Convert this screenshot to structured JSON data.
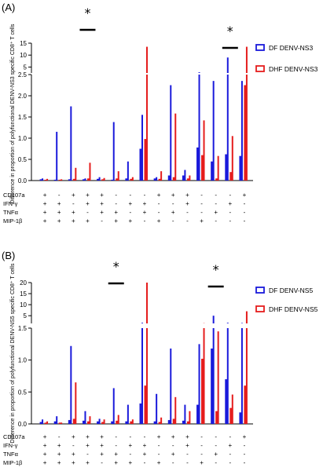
{
  "colors": {
    "df": "#1a1adb",
    "dhf": "#e51d1d",
    "axis": "#000000"
  },
  "chart_data": [
    {
      "type": "bar",
      "panel_label": "(A)",
      "ylabel": "Difference in proportion of polyfunctional DENV-NS3 specific CD8⁺ T cells",
      "ytick_lower": [
        "0.0",
        "0.5",
        "1.0",
        "1.5",
        "2.0",
        "2.5"
      ],
      "ytick_upper": [
        "5",
        "10",
        "15"
      ],
      "ylim_lower": [
        0,
        2.5
      ],
      "ylim_upper": [
        2.5,
        15
      ],
      "legend": [
        {
          "name": "DF DENV-NS3",
          "color": "#1a1adb"
        },
        {
          "name": "DHF DENV-NS3",
          "color": "#e51d1d"
        }
      ],
      "marker_labels": [
        "CD107a",
        "IFN-γ",
        "TNFα",
        "MIP-1β"
      ],
      "categories": [
        [
          "+",
          "+",
          "+",
          "+"
        ],
        [
          "-",
          "+",
          "+",
          "+"
        ],
        [
          "+",
          "-",
          "+",
          "+"
        ],
        [
          "+",
          "+",
          "-",
          "+"
        ],
        [
          "+",
          "+",
          "+",
          "-"
        ],
        [
          "-",
          "-",
          "+",
          "+"
        ],
        [
          "-",
          "+",
          "-",
          "+"
        ],
        [
          "-",
          "+",
          "+",
          "-"
        ],
        [
          "+",
          "-",
          "-",
          "+"
        ],
        [
          "+",
          "-",
          "+",
          "-"
        ],
        [
          "+",
          "+",
          "-",
          "-"
        ],
        [
          "-",
          "-",
          "-",
          "+"
        ],
        [
          "-",
          "-",
          "+",
          "-"
        ],
        [
          "-",
          "+",
          "-",
          "-"
        ],
        [
          "+",
          "-",
          "-",
          "-"
        ]
      ],
      "series": [
        {
          "name": "DF DENV-NS3",
          "values": [
            0.05,
            1.15,
            1.75,
            0.05,
            0.08,
            1.38,
            0.45,
            1.55,
            0.08,
            2.25,
            0.25,
            2.8,
            2.35,
            9.0,
            2.35
          ],
          "means": [
            0.03,
            0.02,
            0.03,
            0.03,
            0.04,
            0.02,
            0.05,
            0.75,
            0.05,
            0.12,
            0.12,
            0.78,
            0.45,
            0.62,
            0.58
          ]
        },
        {
          "name": "DHF DENV-NS3",
          "values": [
            0.04,
            0.03,
            0.3,
            0.42,
            0.06,
            0.22,
            0.08,
            13.5,
            0.22,
            1.58,
            0.12,
            1.42,
            0.58,
            1.05,
            13.5
          ],
          "means": [
            0.02,
            0.02,
            0.04,
            0.05,
            0.03,
            0.05,
            0.04,
            0.98,
            0.04,
            0.08,
            0.05,
            0.6,
            0.05,
            0.2,
            2.25
          ]
        }
      ],
      "significance": [
        {
          "symbol": "*",
          "category_index": 3
        },
        {
          "symbol": "*",
          "category_index": 13
        }
      ]
    },
    {
      "type": "bar",
      "panel_label": "(B)",
      "ylabel": "Difference in proportion of polyfunctional DENV-NS5 specific CD8⁺ T cells",
      "ytick_lower": [
        "0.0",
        "0.5",
        "1.0",
        "1.5"
      ],
      "ytick_upper": [
        "5",
        "10",
        "15",
        "20"
      ],
      "ylim_lower": [
        0,
        1.5
      ],
      "ylim_upper": [
        1.5,
        20
      ],
      "legend": [
        {
          "name": "DF DENV-NS5",
          "color": "#1a1adb"
        },
        {
          "name": "DHF DENV-NS5",
          "color": "#e51d1d"
        }
      ],
      "marker_labels": [
        "CD107a",
        "IFN-γ",
        "TNFα",
        "MIP-1β"
      ],
      "categories": [
        [
          "+",
          "+",
          "+",
          "+"
        ],
        [
          "-",
          "+",
          "+",
          "+"
        ],
        [
          "+",
          "-",
          "+",
          "+"
        ],
        [
          "+",
          "+",
          "-",
          "+"
        ],
        [
          "+",
          "+",
          "+",
          "-"
        ],
        [
          "-",
          "-",
          "+",
          "+"
        ],
        [
          "-",
          "+",
          "-",
          "+"
        ],
        [
          "-",
          "+",
          "+",
          "-"
        ],
        [
          "+",
          "-",
          "-",
          "+"
        ],
        [
          "+",
          "-",
          "+",
          "-"
        ],
        [
          "+",
          "+",
          "-",
          "-"
        ],
        [
          "-",
          "-",
          "-",
          "+"
        ],
        [
          "-",
          "-",
          "+",
          "-"
        ],
        [
          "-",
          "+",
          "-",
          "-"
        ],
        [
          "+",
          "-",
          "-",
          "-"
        ]
      ],
      "series": [
        {
          "name": "DF DENV-NS5",
          "values": [
            0.07,
            0.12,
            1.22,
            0.2,
            0.08,
            0.56,
            0.3,
            1.8,
            0.47,
            1.18,
            0.3,
            1.25,
            5.0,
            1.8,
            1.7
          ],
          "means": [
            0.03,
            0.04,
            0.06,
            0.05,
            0.04,
            0.04,
            0.04,
            0.32,
            0.04,
            0.06,
            0.05,
            0.3,
            1.18,
            0.7,
            0.18
          ]
        },
        {
          "name": "DHF DENV-NS5",
          "values": [
            0.04,
            0.02,
            0.65,
            0.12,
            0.07,
            0.14,
            0.07,
            20.0,
            0.1,
            0.42,
            0.2,
            1.6,
            1.45,
            0.46,
            7.0
          ],
          "means": [
            0.02,
            0.02,
            0.08,
            0.04,
            0.03,
            0.05,
            0.04,
            0.6,
            0.03,
            0.08,
            0.04,
            1.02,
            0.2,
            0.25,
            0.6
          ]
        }
      ],
      "significance": [
        {
          "symbol": "*",
          "category_index": 5
        },
        {
          "symbol": "*",
          "category_index": 12
        }
      ]
    }
  ]
}
